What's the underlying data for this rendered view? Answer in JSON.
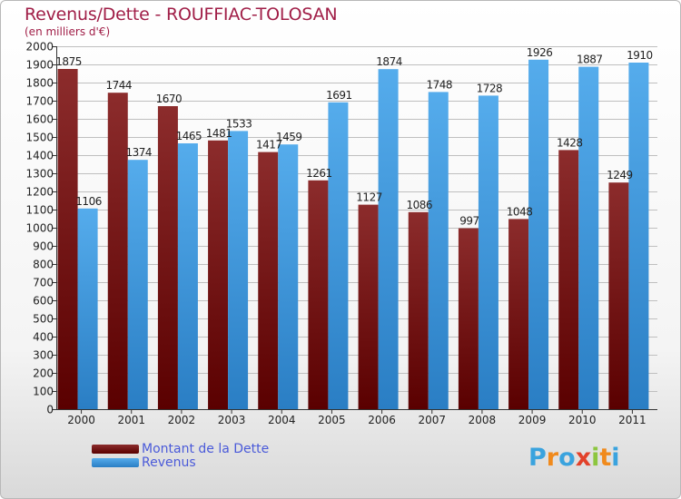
{
  "title": "Revenus/Dette - ROUFFIAC-TOLOSAN",
  "subtitle": "(en milliers d'€)",
  "colors": {
    "dette": "#7a1a1a",
    "revenus": "#3d97dd",
    "axis": "#333333",
    "grid": "#bfbfbf",
    "title": "#a01e47",
    "legend_text": "#4a5ad9"
  },
  "legend": {
    "dette_label": "Montant de la Dette",
    "revenus_label": "Revenus"
  },
  "logo": {
    "letters": [
      {
        "ch": "P",
        "color": "#3aa3de"
      },
      {
        "ch": "r",
        "color": "#f08a1c"
      },
      {
        "ch": "o",
        "color": "#3aa3de"
      },
      {
        "ch": "x",
        "color": "#e2412a"
      },
      {
        "ch": "i",
        "color": "#8cc63f"
      },
      {
        "ch": "t",
        "color": "#f08a1c"
      },
      {
        "ch": "i",
        "color": "#3aa3de"
      }
    ]
  },
  "chart_data": {
    "type": "bar",
    "categories": [
      "2000",
      "2001",
      "2002",
      "2003",
      "2004",
      "2005",
      "2006",
      "2007",
      "2008",
      "2009",
      "2010",
      "2011"
    ],
    "series": [
      {
        "name": "Montant de la Dette",
        "values": [
          1875,
          1744,
          1670,
          1481,
          1417,
          1261,
          1127,
          1086,
          997,
          1048,
          1428,
          1249
        ]
      },
      {
        "name": "Revenus",
        "values": [
          1106,
          1374,
          1465,
          1533,
          1459,
          1691,
          1874,
          1748,
          1728,
          1926,
          1887,
          1910
        ]
      }
    ],
    "ylim": [
      0,
      2000
    ],
    "yticks": [
      0,
      100,
      200,
      300,
      400,
      500,
      600,
      700,
      800,
      900,
      1000,
      1100,
      1200,
      1300,
      1400,
      1500,
      1600,
      1700,
      1800,
      1900,
      2000
    ],
    "grid": true,
    "legend_position": "bottom-left"
  }
}
